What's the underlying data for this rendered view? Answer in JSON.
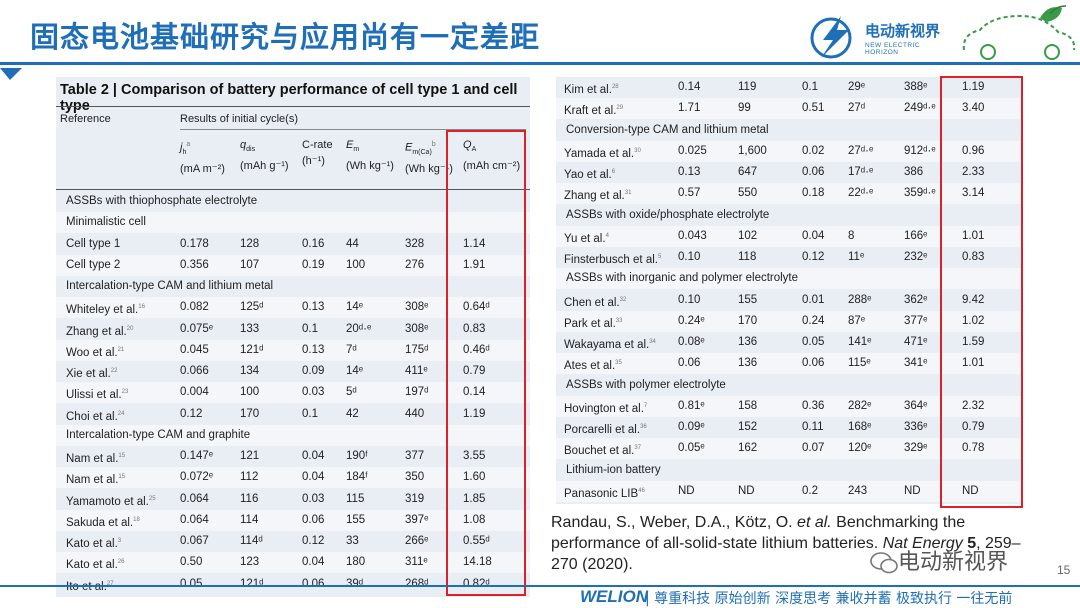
{
  "title": "固态电池基础研究与应用尚有一定差距",
  "logo": {
    "main": "电动新视界",
    "sub": "NEW ELECTRIC HORIZON"
  },
  "table": {
    "title": "Table 2 | Comparison of battery performance of cell type 1 and cell type",
    "header_reference": "Reference",
    "header_results": "Results of initial cycle(s)",
    "col1": {
      "sym": "j",
      "sub": "h",
      "sup": "a",
      "unit": "(mA m⁻²)"
    },
    "col2": {
      "sym": "q",
      "sub": "dis",
      "sup": "",
      "unit": "(mAh g⁻¹)"
    },
    "col3": {
      "sym": "C-rate",
      "sub": "",
      "sup": "",
      "unit": "(h⁻¹)"
    },
    "col4": {
      "sym": "E",
      "sub": "m",
      "sup": "",
      "unit": "(Wh kg⁻¹)"
    },
    "col5": {
      "sym": "E",
      "sub": "m(Ca)",
      "sup": "b",
      "unit": "(Wh kg⁻¹)"
    },
    "col6": {
      "sym": "Q",
      "sub": "A",
      "sup": "",
      "unit": "(mAh cm⁻²)"
    }
  },
  "left_rows": [
    {
      "s": "ASSBs with thiophosphate electrolyte"
    },
    {
      "s": "Minimalistic cell"
    },
    {
      "c": [
        "Cell type 1",
        "",
        "0.178",
        "128",
        "0.16",
        "44",
        "328",
        "1.14"
      ]
    },
    {
      "c": [
        "Cell type 2",
        "",
        "0.356",
        "107",
        "0.19",
        "100",
        "276",
        "1.91"
      ]
    },
    {
      "s": "Intercalation-type CAM and lithium metal"
    },
    {
      "c": [
        "Whiteley et al.",
        "16",
        "0.082",
        "125ᵈ",
        "0.13",
        "14ᵉ",
        "308ᵉ",
        "0.64ᵈ"
      ]
    },
    {
      "c": [
        "Zhang et al.",
        "20",
        "0.075ᵉ",
        "133",
        "0.1",
        "20ᵈ·ᵉ",
        "308ᵉ",
        "0.83"
      ]
    },
    {
      "c": [
        "Woo et al.",
        "21",
        "0.045",
        "121ᵈ",
        "0.13",
        "7ᵈ",
        "175ᵈ",
        "0.46ᵈ"
      ]
    },
    {
      "c": [
        "Xie et al.",
        "22",
        "0.066",
        "134",
        "0.09",
        "14ᵉ",
        "411ᵉ",
        "0.79"
      ]
    },
    {
      "c": [
        "Ulissi et al.",
        "23",
        "0.004",
        "100",
        "0.03",
        "5ᵈ",
        "197ᵈ",
        "0.14"
      ]
    },
    {
      "c": [
        "Choi et al.",
        "24",
        "0.12",
        "170",
        "0.1",
        "42",
        "440",
        "1.19"
      ]
    },
    {
      "s": "Intercalation-type CAM and graphite"
    },
    {
      "c": [
        "Nam et al.",
        "15",
        "0.147ᵉ",
        "121",
        "0.04",
        "190ᶠ",
        "377",
        "3.55"
      ]
    },
    {
      "c": [
        "Nam et al.",
        "15",
        "0.072ᵉ",
        "112",
        "0.04",
        "184ᶠ",
        "350",
        "1.60"
      ]
    },
    {
      "c": [
        "Yamamoto et al.",
        "25",
        "0.064",
        "116",
        "0.03",
        "115",
        "319",
        "1.85"
      ]
    },
    {
      "c": [
        "Sakuda et al.",
        "18",
        "0.064",
        "114",
        "0.06",
        "155",
        "397ᵉ",
        "1.08"
      ]
    },
    {
      "c": [
        "Kato et al.",
        "3",
        "0.067",
        "114ᵈ",
        "0.12",
        "33",
        "266ᵉ",
        "0.55ᵈ"
      ]
    },
    {
      "c": [
        "Kato et al.",
        "26",
        "0.50",
        "123",
        "0.04",
        "180",
        "311ᵉ",
        "14.18"
      ]
    },
    {
      "c": [
        "Ito et al.",
        "27",
        "0.05",
        "121ᵈ",
        "0.06",
        "39ᵈ",
        "268ᵈ",
        "0.82ᵈ"
      ]
    }
  ],
  "right_rows": [
    {
      "c": [
        "Kim et al.",
        "28",
        "0.14",
        "119",
        "0.1",
        "29ᵉ",
        "388ᵉ",
        "1.19"
      ]
    },
    {
      "c": [
        "Kraft et al.",
        "29",
        "1.71",
        "99",
        "0.51",
        "27ᵈ",
        "249ᵈ·ᵉ",
        "3.40"
      ]
    },
    {
      "s": "Conversion-type CAM and lithium metal"
    },
    {
      "c": [
        "Yamada et al.",
        "30",
        "0.025",
        "1,600",
        "0.02",
        "27ᵈ·ᵉ",
        "912ᵈ·ᵉ",
        "0.96"
      ]
    },
    {
      "c": [
        "Yao et al.",
        "6",
        "0.13",
        "647",
        "0.06",
        "17ᵈ·ᵉ",
        "386",
        "2.33"
      ]
    },
    {
      "c": [
        "Zhang et al.",
        "31",
        "0.57",
        "550",
        "0.18",
        "22ᵈ·ᵉ",
        "359ᵈ·ᵉ",
        "3.14"
      ]
    },
    {
      "s": "ASSBs with oxide/phosphate electrolyte"
    },
    {
      "c": [
        "Yu et al.",
        "4",
        "0.043",
        "102",
        "0.04",
        "8",
        "166ᵉ",
        "1.01"
      ]
    },
    {
      "c": [
        "Finsterbusch et al.",
        "5",
        "0.10",
        "118",
        "0.12",
        "11ᵉ",
        "232ᵉ",
        "0.83"
      ]
    },
    {
      "s": "ASSBs with inorganic and polymer electrolyte"
    },
    {
      "c": [
        "Chen et al.",
        "32",
        "0.10",
        "155",
        "0.01",
        "288ᵉ",
        "362ᵉ",
        "9.42"
      ]
    },
    {
      "c": [
        "Park et al.",
        "33",
        "0.24ᵉ",
        "170",
        "0.24",
        "87ᵉ",
        "377ᵉ",
        "1.02"
      ]
    },
    {
      "c": [
        "Wakayama et al.",
        "34",
        "0.08ᵉ",
        "136",
        "0.05",
        "141ᵉ",
        "471ᵉ",
        "1.59"
      ]
    },
    {
      "c": [
        "Ates et al.",
        "35",
        "0.06",
        "136",
        "0.06",
        "115ᵉ",
        "341ᵉ",
        "1.01"
      ]
    },
    {
      "s": "ASSBs with polymer electrolyte"
    },
    {
      "c": [
        "Hovington et al.",
        "7",
        "0.81ᵉ",
        "158",
        "0.36",
        "282ᵉ",
        "364ᵉ",
        "2.32"
      ]
    },
    {
      "c": [
        "Porcarelli et al.",
        "36",
        "0.09ᵉ",
        "152",
        "0.11",
        "168ᵉ",
        "336ᵉ",
        "0.79"
      ]
    },
    {
      "c": [
        "Bouchet et al.",
        "37",
        "0.05ᵉ",
        "162",
        "0.07",
        "120ᵉ",
        "329ᵉ",
        "0.78"
      ]
    },
    {
      "s": "Lithium-ion battery"
    },
    {
      "c": [
        "Panasonic LIB",
        "46",
        "ND",
        "ND",
        "0.2",
        "243",
        "ND",
        "ND"
      ]
    }
  ],
  "citation": {
    "authors": "Randau, S., Weber, D.A., Kötz, O. ",
    "etal": "et al.",
    "text": " Benchmarking the performance of all-solid-state lithium batteries. ",
    "journal": "Nat Energy",
    "volume": " 5",
    "pages": ", 259–270 (2020)."
  },
  "wechat_label": "电动新视界",
  "page_number": "15",
  "footer": {
    "brand": "WELION",
    "slogan": "| 尊重科技  原始创新  深度思考  兼收并蓄  极致执行  一往无前"
  }
}
